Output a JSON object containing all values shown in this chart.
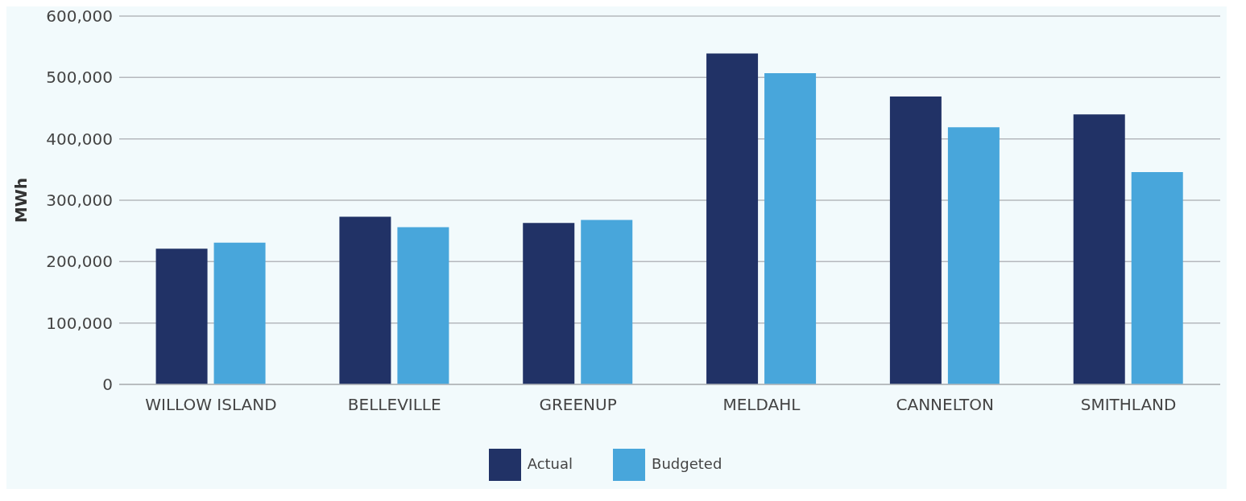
{
  "chart_data": {
    "type": "bar",
    "ylabel": "MWh",
    "categories": [
      "WILLOW ISLAND",
      "BELLEVILLE",
      "GREENUP",
      "MELDAHL",
      "CANNELTON",
      "SMITHLAND"
    ],
    "series": [
      {
        "name": "Actual",
        "color": "#213266",
        "values": [
          221000,
          273000,
          263000,
          539000,
          469000,
          440000
        ]
      },
      {
        "name": "Budgeted",
        "color": "#48a6db",
        "values": [
          231000,
          256000,
          268000,
          507000,
          419000,
          346000
        ]
      }
    ],
    "ylim": [
      0,
      600000
    ],
    "yticks": [
      0,
      {
        "value": 100000,
        "label": "100,000"
      },
      {
        "value": 200000,
        "label": "200,000"
      },
      {
        "value": 300000,
        "label": "300,000"
      },
      {
        "value": 400000,
        "label": "400,000"
      },
      {
        "value": 500000,
        "label": "500,000"
      },
      {
        "value": 600000,
        "label": "600,000"
      }
    ],
    "grid": "y",
    "legend": "bottom"
  }
}
